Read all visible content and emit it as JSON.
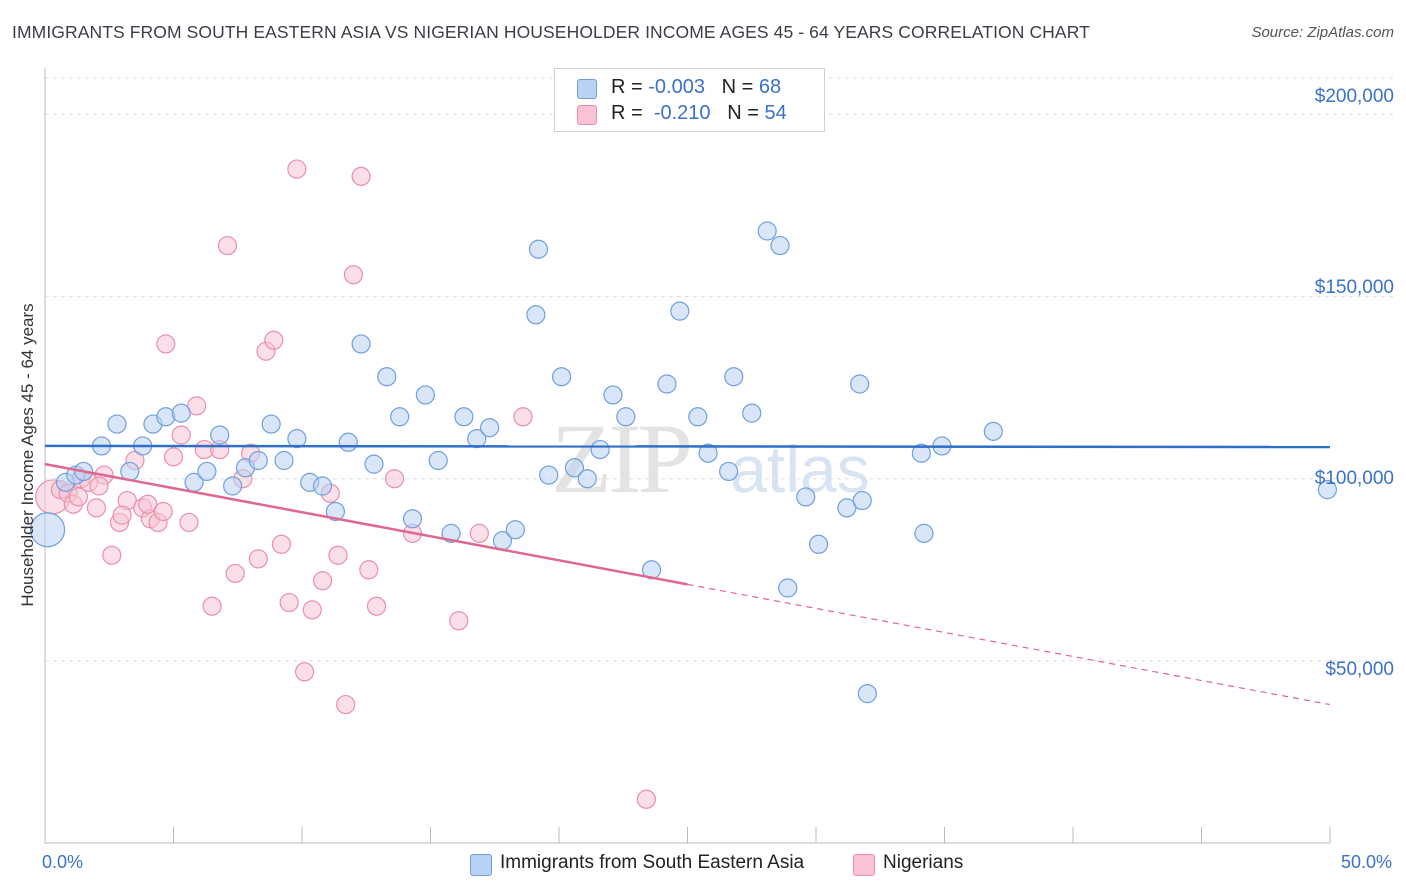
{
  "title": "IMMIGRANTS FROM SOUTH EASTERN ASIA VS NIGERIAN HOUSEHOLDER INCOME AGES 45 - 64 YEARS CORRELATION CHART",
  "source": "Source: ZipAtlas.com",
  "watermark": {
    "zip": "ZIP",
    "atlas": "atlas"
  },
  "legend": {
    "blue": {
      "r_label": "R =",
      "r_value": "-0.003",
      "n_label": "N =",
      "n_value": "68"
    },
    "pink": {
      "r_label": "R =",
      "r_value": "-0.210",
      "n_label": "N =",
      "n_value": "54"
    }
  },
  "colors": {
    "blue_fill": "#b9d2f3",
    "blue_stroke": "#6f9fde",
    "blue_line": "#2f6fc8",
    "pink_fill": "#f8c4d4",
    "pink_stroke": "#ea8fab",
    "pink_line": "#e0678f",
    "grid": "#dedede",
    "axis_text": "#3a72c8"
  },
  "chart_data": {
    "type": "scatter",
    "title": "IMMIGRANTS FROM SOUTH EASTERN ASIA VS NIGERIAN HOUSEHOLDER INCOME AGES 45 - 64 YEARS CORRELATION CHART",
    "xlabel": "",
    "ylabel": "Householder Income Ages 45 - 64 years",
    "x_tick_labels": [
      "0.0%",
      "50.0%"
    ],
    "y_tick_labels": [
      "$50,000",
      "$100,000",
      "$150,000",
      "$200,000"
    ],
    "y_ticks": [
      50000,
      100000,
      150000,
      200000
    ],
    "xlim": [
      0,
      50
    ],
    "ylim": [
      0,
      210000
    ],
    "grid": true,
    "legend_position": "top-center",
    "series": [
      {
        "name": "Immigrants from South Eastern Asia",
        "color": "#6f9fde",
        "trend": {
          "x": [
            0,
            50
          ],
          "y": [
            109000,
            108700
          ]
        },
        "points": [
          {
            "x": 0.1,
            "y": 86000,
            "size": "large"
          },
          {
            "x": 0.8,
            "y": 99000
          },
          {
            "x": 1.2,
            "y": 101000
          },
          {
            "x": 1.5,
            "y": 102000
          },
          {
            "x": 2.2,
            "y": 109000
          },
          {
            "x": 2.8,
            "y": 115000
          },
          {
            "x": 3.3,
            "y": 102000
          },
          {
            "x": 3.8,
            "y": 109000
          },
          {
            "x": 4.2,
            "y": 115000
          },
          {
            "x": 4.7,
            "y": 117000
          },
          {
            "x": 5.3,
            "y": 118000
          },
          {
            "x": 5.8,
            "y": 99000
          },
          {
            "x": 6.3,
            "y": 102000
          },
          {
            "x": 6.8,
            "y": 112000
          },
          {
            "x": 7.3,
            "y": 98000
          },
          {
            "x": 7.8,
            "y": 103000
          },
          {
            "x": 8.3,
            "y": 105000
          },
          {
            "x": 8.8,
            "y": 115000
          },
          {
            "x": 9.3,
            "y": 105000
          },
          {
            "x": 9.8,
            "y": 111000
          },
          {
            "x": 10.3,
            "y": 99000
          },
          {
            "x": 10.8,
            "y": 98000
          },
          {
            "x": 11.3,
            "y": 91000
          },
          {
            "x": 11.8,
            "y": 110000
          },
          {
            "x": 12.3,
            "y": 137000
          },
          {
            "x": 12.8,
            "y": 104000
          },
          {
            "x": 13.3,
            "y": 128000
          },
          {
            "x": 13.8,
            "y": 117000
          },
          {
            "x": 14.3,
            "y": 89000
          },
          {
            "x": 14.8,
            "y": 123000
          },
          {
            "x": 15.3,
            "y": 105000
          },
          {
            "x": 15.8,
            "y": 85000
          },
          {
            "x": 16.3,
            "y": 117000
          },
          {
            "x": 16.8,
            "y": 111000
          },
          {
            "x": 17.3,
            "y": 114000
          },
          {
            "x": 17.8,
            "y": 83000
          },
          {
            "x": 18.3,
            "y": 86000
          },
          {
            "x": 19.1,
            "y": 145000
          },
          {
            "x": 19.2,
            "y": 163000
          },
          {
            "x": 19.6,
            "y": 101000
          },
          {
            "x": 20.1,
            "y": 128000
          },
          {
            "x": 20.6,
            "y": 103000
          },
          {
            "x": 21.1,
            "y": 100000
          },
          {
            "x": 21.6,
            "y": 108000
          },
          {
            "x": 22.1,
            "y": 123000
          },
          {
            "x": 22.6,
            "y": 117000
          },
          {
            "x": 23.6,
            "y": 75000
          },
          {
            "x": 24.2,
            "y": 126000
          },
          {
            "x": 24.7,
            "y": 146000
          },
          {
            "x": 25.4,
            "y": 117000
          },
          {
            "x": 25.8,
            "y": 107000
          },
          {
            "x": 26.6,
            "y": 102000
          },
          {
            "x": 26.8,
            "y": 128000
          },
          {
            "x": 27.5,
            "y": 118000
          },
          {
            "x": 28.1,
            "y": 168000
          },
          {
            "x": 28.6,
            "y": 164000
          },
          {
            "x": 28.9,
            "y": 70000
          },
          {
            "x": 29.6,
            "y": 95000
          },
          {
            "x": 30.1,
            "y": 82000
          },
          {
            "x": 31.2,
            "y": 92000
          },
          {
            "x": 31.7,
            "y": 126000
          },
          {
            "x": 31.8,
            "y": 94000
          },
          {
            "x": 32.0,
            "y": 41000
          },
          {
            "x": 34.1,
            "y": 107000
          },
          {
            "x": 34.2,
            "y": 85000
          },
          {
            "x": 34.9,
            "y": 109000
          },
          {
            "x": 36.9,
            "y": 113000
          },
          {
            "x": 49.9,
            "y": 97000
          }
        ]
      },
      {
        "name": "Nigerians",
        "color": "#ea8fab",
        "trend": {
          "x": [
            0,
            25
          ],
          "y": [
            104000,
            71000
          ],
          "dashed_extension_to": {
            "x": 50,
            "y": 38000
          }
        },
        "points": [
          {
            "x": 0.3,
            "y": 95000,
            "size": "large"
          },
          {
            "x": 0.6,
            "y": 97000
          },
          {
            "x": 0.9,
            "y": 96000
          },
          {
            "x": 1.1,
            "y": 93000
          },
          {
            "x": 1.4,
            "y": 100000
          },
          {
            "x": 1.7,
            "y": 99000
          },
          {
            "x": 2.0,
            "y": 92000
          },
          {
            "x": 2.3,
            "y": 101000
          },
          {
            "x": 2.6,
            "y": 79000
          },
          {
            "x": 2.9,
            "y": 88000
          },
          {
            "x": 3.2,
            "y": 94000
          },
          {
            "x": 3.5,
            "y": 105000
          },
          {
            "x": 3.8,
            "y": 92000
          },
          {
            "x": 4.1,
            "y": 89000
          },
          {
            "x": 4.4,
            "y": 88000
          },
          {
            "x": 4.7,
            "y": 137000
          },
          {
            "x": 5.0,
            "y": 106000
          },
          {
            "x": 5.3,
            "y": 112000
          },
          {
            "x": 5.6,
            "y": 88000
          },
          {
            "x": 5.9,
            "y": 120000
          },
          {
            "x": 6.2,
            "y": 108000
          },
          {
            "x": 6.5,
            "y": 65000
          },
          {
            "x": 6.8,
            "y": 108000
          },
          {
            "x": 7.1,
            "y": 164000
          },
          {
            "x": 7.4,
            "y": 74000
          },
          {
            "x": 7.7,
            "y": 100000
          },
          {
            "x": 8.0,
            "y": 107000
          },
          {
            "x": 8.3,
            "y": 78000
          },
          {
            "x": 8.6,
            "y": 135000
          },
          {
            "x": 8.9,
            "y": 138000
          },
          {
            "x": 9.2,
            "y": 82000
          },
          {
            "x": 9.5,
            "y": 66000
          },
          {
            "x": 9.8,
            "y": 185000
          },
          {
            "x": 10.1,
            "y": 47000
          },
          {
            "x": 10.4,
            "y": 64000
          },
          {
            "x": 10.8,
            "y": 72000
          },
          {
            "x": 11.1,
            "y": 96000
          },
          {
            "x": 11.4,
            "y": 79000
          },
          {
            "x": 11.7,
            "y": 38000
          },
          {
            "x": 12.0,
            "y": 156000
          },
          {
            "x": 12.3,
            "y": 183000
          },
          {
            "x": 12.6,
            "y": 75000
          },
          {
            "x": 12.9,
            "y": 65000
          },
          {
            "x": 13.6,
            "y": 100000
          },
          {
            "x": 14.3,
            "y": 85000
          },
          {
            "x": 16.1,
            "y": 61000
          },
          {
            "x": 16.9,
            "y": 85000
          },
          {
            "x": 18.6,
            "y": 117000
          },
          {
            "x": 23.4,
            "y": 12000
          },
          {
            "x": 3.0,
            "y": 90000
          },
          {
            "x": 4.0,
            "y": 93000
          },
          {
            "x": 1.3,
            "y": 95000
          },
          {
            "x": 2.1,
            "y": 98000
          },
          {
            "x": 4.6,
            "y": 91000
          }
        ]
      }
    ]
  }
}
